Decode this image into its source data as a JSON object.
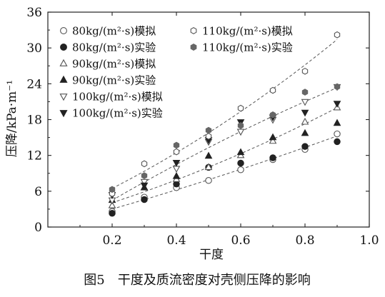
{
  "chart_data": {
    "type": "scatter",
    "xlabel": "干度",
    "ylabel": "压降/kPa·m⁻¹",
    "caption": "图5　干度及质流密度对壳侧压降的影响",
    "xlim": [
      0.0,
      1.0
    ],
    "ylim": [
      0,
      36
    ],
    "xticks": [
      "0.2",
      "0.4",
      "0.6",
      "0.8",
      "1.0"
    ],
    "yticks": [
      "0",
      "6",
      "12",
      "18",
      "24",
      "30",
      "36"
    ],
    "grid": false,
    "legend_position": "top-left",
    "x": [
      0.2,
      0.3,
      0.4,
      0.5,
      0.6,
      0.7,
      0.8,
      0.9
    ],
    "series": [
      {
        "name": "80kg/(m²·s)模拟",
        "marker": "circle-open",
        "color": "#555555",
        "fit": true,
        "values": [
          2.6,
          5.0,
          6.6,
          7.8,
          9.6,
          11.3,
          13.0,
          15.6
        ]
      },
      {
        "name": "80kg/(m²·s)实验",
        "marker": "circle-filled",
        "color": "#222222",
        "fit": false,
        "values": [
          2.3,
          4.6,
          7.2,
          10.0,
          10.7,
          11.6,
          13.5,
          14.3
        ]
      },
      {
        "name": "90kg/(m²·s)模拟",
        "marker": "triangle-up-open",
        "color": "#555555",
        "fit": true,
        "values": [
          3.6,
          6.6,
          8.0,
          10.0,
          12.0,
          14.4,
          17.6,
          20.0
        ]
      },
      {
        "name": "90kg/(m²·s)实验",
        "marker": "triangle-up-filled",
        "color": "#222222",
        "fit": false,
        "values": [
          4.5,
          6.6,
          8.5,
          11.9,
          12.5,
          15.0,
          15.7,
          17.4
        ]
      },
      {
        "name": "100kg/(m²·s)模拟",
        "marker": "triangle-down-open",
        "color": "#555555",
        "fit": true,
        "values": [
          4.5,
          7.6,
          9.8,
          14.3,
          16.0,
          18.0,
          21.0,
          23.5
        ]
      },
      {
        "name": "100kg/(m²·s)实验",
        "marker": "triangle-down-filled",
        "color": "#222222",
        "fit": false,
        "values": [
          5.4,
          7.0,
          10.8,
          14.6,
          17.6,
          18.4,
          19.2,
          20.7
        ]
      },
      {
        "name": "110kg/(m²·s)模拟",
        "marker": "hexagon-open",
        "color": "#555555",
        "fit": true,
        "values": [
          5.6,
          10.6,
          12.6,
          15.2,
          19.9,
          22.9,
          26.1,
          32.2
        ]
      },
      {
        "name": "110kg/(m²·s)实验",
        "marker": "hexagon-filled",
        "color": "#666666",
        "fit": false,
        "values": [
          6.3,
          8.6,
          13.7,
          16.2,
          17.0,
          18.8,
          22.6,
          23.5
        ]
      }
    ]
  }
}
